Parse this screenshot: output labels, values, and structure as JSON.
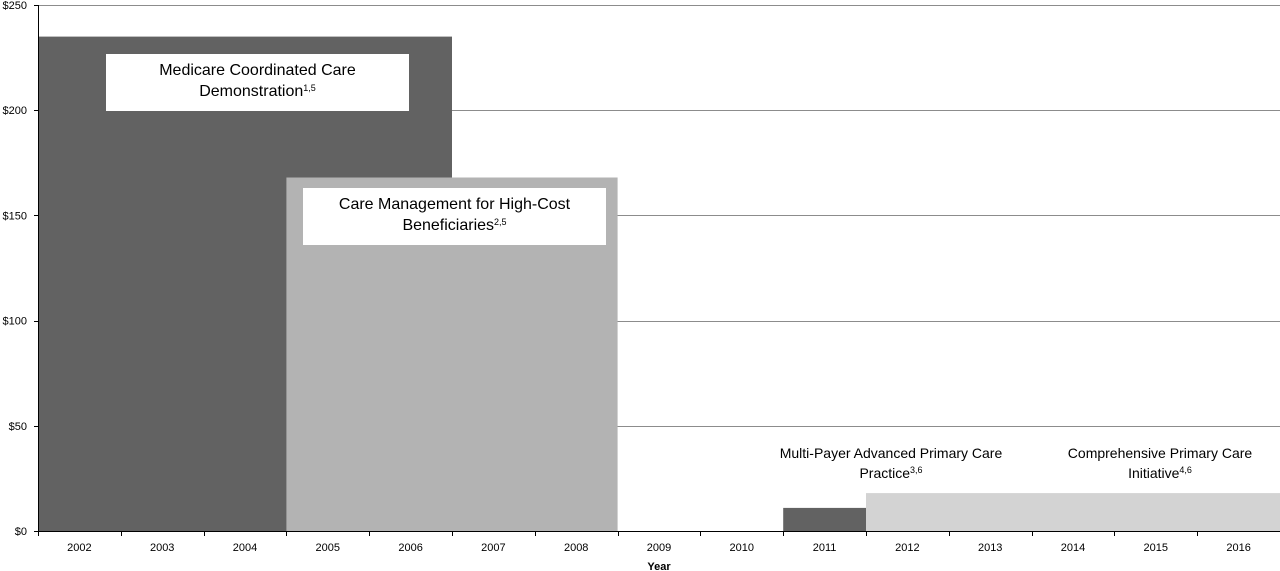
{
  "chart_data": {
    "type": "bar",
    "xlabel": "Year",
    "ylabel": "",
    "ylim": [
      0,
      250
    ],
    "yticks": [
      "$0",
      "$50",
      "$100",
      "$150",
      "$200",
      "$250"
    ],
    "categories": [
      "2002",
      "2003",
      "2004",
      "2005",
      "2006",
      "2007",
      "2008",
      "2009",
      "2010",
      "2011",
      "2012",
      "2013",
      "2014",
      "2015",
      "2016"
    ],
    "grid": true,
    "series": [
      {
        "key": "mccd",
        "name": "Medicare Coordinated Care Demonstration",
        "superscript": "1,5",
        "start": "2002",
        "end": "2006",
        "value": 235,
        "color": "#626262"
      },
      {
        "key": "cmhcb",
        "name": "Care Management for High-Cost Beneficiaries",
        "superscript": "2,5",
        "start": "2005",
        "end": "2008",
        "value": 168,
        "color": "#b3b3b3"
      },
      {
        "key": "mapcp",
        "name": "Multi-Payer Advanced Primary Care Practice",
        "superscript": "3,6",
        "start": "2011",
        "end": "2011",
        "value": 11,
        "color": "#626262"
      },
      {
        "key": "cpci",
        "name": "Comprehensive Primary Care Initiative",
        "superscript": "4,6",
        "start": "2012",
        "end": "2016",
        "value": 18,
        "color": "#d3d3d3"
      }
    ]
  },
  "labels": {
    "mccd_line1": "Medicare Coordinated Care",
    "mccd_line2": "Demonstration",
    "mccd_sup": "1,5",
    "cmhcb_line1": "Care Management for High-Cost",
    "cmhcb_line2": "Beneficiaries",
    "cmhcb_sup": "2,5",
    "mapcp_line1": "Multi-Payer Advanced Primary Care",
    "mapcp_line2": "Practice",
    "mapcp_sup": "3,6",
    "cpci_line1": "Comprehensive Primary Care",
    "cpci_line2": "Initiative",
    "cpci_sup": "4,6"
  }
}
